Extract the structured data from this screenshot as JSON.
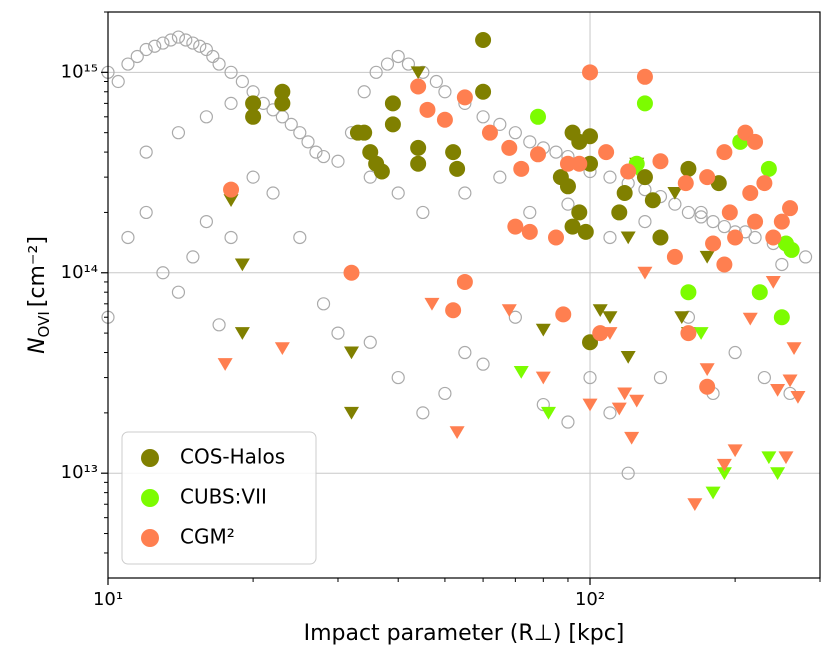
{
  "chart_data": {
    "type": "scatter",
    "xlabel": "Impact parameter (R⊥) [kpc]",
    "ylabel": {
      "symbol": "N",
      "subscript": "OVI",
      "unit": "[cm⁻²]"
    },
    "xscale": "log",
    "yscale": "log",
    "grid": true,
    "legend": "lower left",
    "xlim": [
      10,
      300
    ],
    "ylim": [
      3000000000000.0,
      2000000000000000.0
    ],
    "xticks": [
      {
        "value": 10,
        "label": "10¹"
      },
      {
        "value": 100,
        "label": "10²"
      }
    ],
    "xminorticks": [
      20,
      30,
      40,
      50,
      60,
      70,
      80,
      90,
      200,
      300
    ],
    "yticks": [
      {
        "value": 10000000000000.0,
        "label": "10¹³"
      },
      {
        "value": 100000000000000.0,
        "label": "10¹⁴"
      },
      {
        "value": 1000000000000000.0,
        "label": "10¹⁵"
      }
    ],
    "yminorticks": [
      4000000000000.0,
      5000000000000.0,
      6000000000000.0,
      7000000000000.0,
      8000000000000.0,
      9000000000000.0,
      20000000000000.0,
      30000000000000.0,
      40000000000000.0,
      50000000000000.0,
      60000000000000.0,
      70000000000000.0,
      80000000000000.0,
      90000000000000.0,
      200000000000000.0,
      300000000000000.0,
      400000000000000.0,
      500000000000000.0,
      600000000000000.0,
      700000000000000.0,
      800000000000000.0,
      900000000000000.0,
      2000000000000000.0
    ],
    "background_points": {
      "color": "#aaaaaa",
      "x": [
        10,
        10.5,
        11,
        11.5,
        12,
        12.5,
        13,
        13.5,
        14,
        14.5,
        15,
        15.5,
        16,
        16.5,
        17,
        18,
        19,
        20,
        21,
        22,
        23,
        24,
        25,
        26,
        27,
        28,
        30,
        32,
        34,
        36,
        38,
        40,
        42,
        45,
        48,
        50,
        55,
        60,
        65,
        70,
        75,
        80,
        85,
        90,
        95,
        100,
        110,
        120,
        130,
        140,
        150,
        160,
        170,
        180,
        190,
        200,
        220,
        240,
        260,
        280,
        10,
        11,
        12,
        13,
        14,
        15,
        16,
        17,
        18,
        20,
        22,
        25,
        28,
        30,
        35,
        40,
        45,
        50,
        55,
        60,
        70,
        80,
        90,
        100,
        110,
        120,
        140,
        160,
        180,
        200,
        230,
        260,
        12,
        14,
        16,
        18,
        35,
        40,
        45,
        55,
        65,
        75,
        90,
        110,
        130,
        170,
        210,
        250
      ],
      "values": [
        1000000000000000.0,
        900000000000000.0,
        1100000000000000.0,
        1200000000000000.0,
        1300000000000000.0,
        1350000000000000.0,
        1400000000000000.0,
        1450000000000000.0,
        1500000000000000.0,
        1450000000000000.0,
        1400000000000000.0,
        1350000000000000.0,
        1300000000000000.0,
        1200000000000000.0,
        1100000000000000.0,
        1000000000000000.0,
        900000000000000.0,
        800000000000000.0,
        700000000000000.0,
        650000000000000.0,
        600000000000000.0,
        550000000000000.0,
        500000000000000.0,
        450000000000000.0,
        400000000000000.0,
        380000000000000.0,
        360000000000000.0,
        500000000000000.0,
        800000000000000.0,
        1000000000000000.0,
        1100000000000000.0,
        1200000000000000.0,
        1100000000000000.0,
        1000000000000000.0,
        900000000000000.0,
        800000000000000.0,
        700000000000000.0,
        600000000000000.0,
        550000000000000.0,
        500000000000000.0,
        450000000000000.0,
        420000000000000.0,
        400000000000000.0,
        380000000000000.0,
        350000000000000.0,
        320000000000000.0,
        300000000000000.0,
        280000000000000.0,
        260000000000000.0,
        240000000000000.0,
        220000000000000.0,
        200000000000000.0,
        190000000000000.0,
        180000000000000.0,
        170000000000000.0,
        160000000000000.0,
        150000000000000.0,
        140000000000000.0,
        130000000000000.0,
        120000000000000.0,
        60000000000000.0,
        150000000000000.0,
        200000000000000.0,
        100000000000000.0,
        80000000000000.0,
        120000000000000.0,
        180000000000000.0,
        55000000000000.0,
        150000000000000.0,
        300000000000000.0,
        250000000000000.0,
        150000000000000.0,
        70000000000000.0,
        50000000000000.0,
        45000000000000.0,
        30000000000000.0,
        20000000000000.0,
        25000000000000.0,
        40000000000000.0,
        35000000000000.0,
        60000000000000.0,
        22000000000000.0,
        18000000000000.0,
        30000000000000.0,
        20000000000000.0,
        10000000000000.0,
        30000000000000.0,
        60000000000000.0,
        25000000000000.0,
        40000000000000.0,
        30000000000000.0,
        25000000000000.0,
        400000000000000.0,
        500000000000000.0,
        600000000000000.0,
        700000000000000.0,
        300000000000000.0,
        250000000000000.0,
        200000000000000.0,
        250000000000000.0,
        300000000000000.0,
        200000000000000.0,
        220000000000000.0,
        150000000000000.0,
        180000000000000.0,
        200000000000000.0,
        160000000000000.0,
        110000000000000.0
      ]
    },
    "series": [
      {
        "name": "COS-Halos",
        "color": "#808000",
        "x": [
          60,
          60,
          20,
          20,
          23,
          23,
          39,
          39,
          33,
          35,
          36,
          37,
          44,
          44,
          52,
          53,
          87,
          90,
          92,
          95,
          100,
          100,
          95,
          92,
          98,
          115,
          118,
          130,
          135,
          140,
          160,
          185,
          100,
          34
        ],
        "values": [
          1450000000000000.0,
          800000000000000.0,
          700000000000000.0,
          600000000000000.0,
          800000000000000.0,
          700000000000000.0,
          700000000000000.0,
          550000000000000.0,
          500000000000000.0,
          400000000000000.0,
          350000000000000.0,
          320000000000000.0,
          420000000000000.0,
          350000000000000.0,
          400000000000000.0,
          330000000000000.0,
          300000000000000.0,
          270000000000000.0,
          500000000000000.0,
          450000000000000.0,
          480000000000000.0,
          350000000000000.0,
          200000000000000.0,
          170000000000000.0,
          160000000000000.0,
          200000000000000.0,
          250000000000000.0,
          300000000000000.0,
          230000000000000.0,
          150000000000000.0,
          330000000000000.0,
          280000000000000.0,
          45000000000000.0,
          500000000000000.0
        ],
        "upper_limits": {
          "x": [
            18,
            19,
            19,
            32,
            32,
            44,
            80,
            105,
            110,
            120,
            120,
            155,
            160,
            175,
            150,
            125
          ],
          "values": [
            230000000000000.0,
            110000000000000.0,
            50000000000000.0,
            40000000000000.0,
            20000000000000.0,
            1000000000000000.0,
            52000000000000.0,
            65000000000000.0,
            60000000000000.0,
            150000000000000.0,
            38000000000000.0,
            60000000000000.0,
            50000000000000.0,
            120000000000000.0,
            250000000000000.0,
            350000000000000.0
          ]
        }
      },
      {
        "name": "CUBS:VII",
        "color": "#7cfc00",
        "x": [
          78,
          130,
          125,
          160,
          205,
          225,
          235,
          255,
          262,
          250
        ],
        "values": [
          600000000000000.0,
          700000000000000.0,
          350000000000000.0,
          80000000000000.0,
          450000000000000.0,
          80000000000000.0,
          330000000000000.0,
          140000000000000.0,
          130000000000000.0,
          60000000000000.0
        ],
        "upper_limits": {
          "x": [
            72,
            82,
            170,
            180,
            190,
            235,
            245,
            125
          ],
          "values": [
            32000000000000.0,
            20000000000000.0,
            50000000000000.0,
            8000000000000.0,
            10000000000000.0,
            12000000000000.0,
            10000000000000.0,
            330000000000000.0
          ]
        }
      },
      {
        "name": "CGM²",
        "color": "#ff7f50",
        "x": [
          18,
          32,
          44,
          46,
          55,
          50,
          62,
          68,
          72,
          78,
          90,
          95,
          100,
          108,
          120,
          130,
          140,
          158,
          175,
          190,
          210,
          215,
          220,
          230,
          260,
          250,
          200,
          180,
          190,
          240,
          70,
          75,
          85,
          55,
          52,
          88,
          105,
          160,
          175,
          220,
          195,
          150
        ],
        "values": [
          260000000000000.0,
          100000000000000.0,
          850000000000000.0,
          650000000000000.0,
          750000000000000.0,
          580000000000000.0,
          500000000000000.0,
          420000000000000.0,
          330000000000000.0,
          390000000000000.0,
          350000000000000.0,
          350000000000000.0,
          1000000000000000.0,
          400000000000000.0,
          320000000000000.0,
          950000000000000.0,
          360000000000000.0,
          280000000000000.0,
          300000000000000.0,
          400000000000000.0,
          500000000000000.0,
          250000000000000.0,
          450000000000000.0,
          280000000000000.0,
          210000000000000.0,
          180000000000000.0,
          150000000000000.0,
          140000000000000.0,
          110000000000000.0,
          150000000000000.0,
          170000000000000.0,
          160000000000000.0,
          150000000000000.0,
          90000000000000.0,
          65000000000000.0,
          62000000000000.0,
          50000000000000.0,
          50000000000000.0,
          27000000000000.0,
          180000000000000.0,
          200000000000000.0,
          120000000000000.0
        ],
        "upper_limits": {
          "x": [
            17.5,
            23,
            47,
            53,
            68,
            80,
            100,
            110,
            115,
            118,
            122,
            125,
            130,
            165,
            175,
            190,
            200,
            215,
            245,
            255,
            265,
            270,
            260,
            240
          ],
          "values": [
            35000000000000.0,
            42000000000000.0,
            70000000000000.0,
            16000000000000.0,
            65000000000000.0,
            30000000000000.0,
            22000000000000.0,
            50000000000000.0,
            21000000000000.0,
            25000000000000.0,
            15000000000000.0,
            23000000000000.0,
            100000000000000.0,
            7000000000000.0,
            33000000000000.0,
            11000000000000.0,
            13000000000000.0,
            59000000000000.0,
            26000000000000.0,
            12000000000000.0,
            42000000000000.0,
            24000000000000.0,
            29000000000000.0,
            90000000000000.0
          ]
        }
      }
    ]
  }
}
